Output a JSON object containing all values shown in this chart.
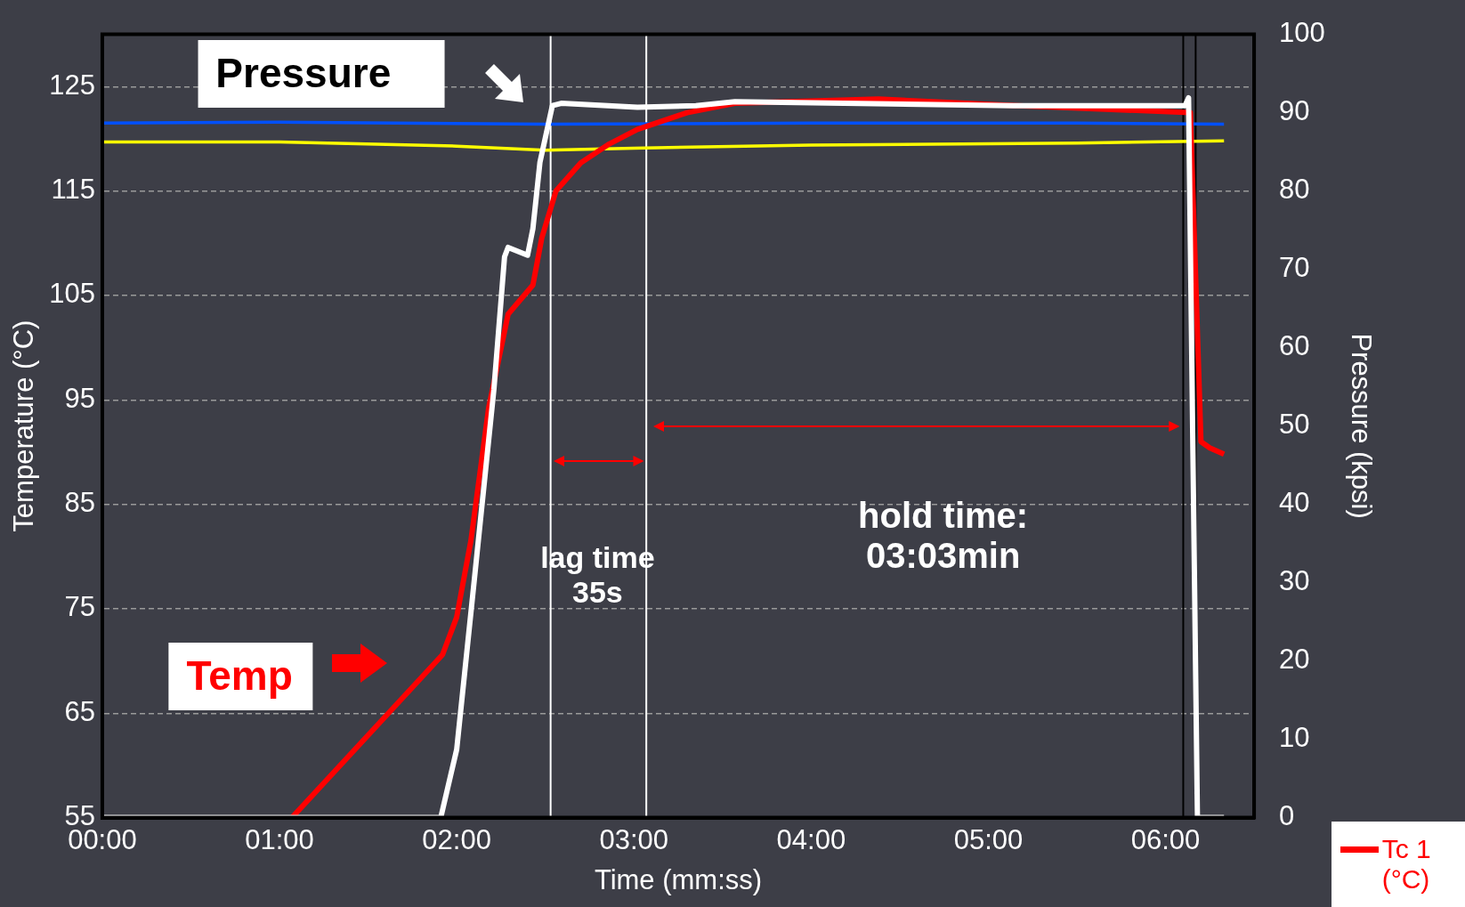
{
  "chart_data": {
    "type": "line",
    "xlabel": "Time (mm:ss)",
    "ylabel": "Temperature (°C)",
    "y2label": "Pressure (kpsi)",
    "xlim": [
      0,
      6.5
    ],
    "xticks": [
      {
        "value": 0,
        "label": "00:00"
      },
      {
        "value": 1,
        "label": "01:00"
      },
      {
        "value": 2,
        "label": "02:00"
      },
      {
        "value": 3,
        "label": "03:00"
      },
      {
        "value": 4,
        "label": "04:00"
      },
      {
        "value": 5,
        "label": "05:00"
      },
      {
        "value": 6,
        "label": "06:00"
      }
    ],
    "ylim": [
      55,
      130
    ],
    "yticks": [
      55,
      65,
      75,
      85,
      95,
      105,
      115,
      125
    ],
    "y2lim": [
      0,
      100
    ],
    "y2ticks": [
      0,
      10,
      20,
      30,
      40,
      50,
      60,
      70,
      80,
      90,
      100
    ],
    "grid": "y",
    "legend": "bottom right",
    "series": [
      {
        "name": "Tc 1 (°C)",
        "color": "#ff0000",
        "x": [
          1.07,
          1.92,
          2.0,
          2.08,
          2.18,
          2.29,
          2.43,
          2.48,
          2.56,
          2.7,
          2.86,
          3.02,
          3.3,
          3.57,
          4.38,
          5.14,
          6.14,
          6.2,
          6.25,
          6.33
        ],
        "values": [
          55,
          70.6,
          74.2,
          81.5,
          94.2,
          103.2,
          106,
          110.5,
          115,
          117.7,
          119.5,
          120.9,
          122.5,
          123.4,
          123.8,
          123.2,
          122.5,
          91,
          90.4,
          89.8
        ]
      },
      {
        "color": "#ffffff",
        "axis": "y2",
        "x": [
          0,
          1.91,
          2.0,
          2.1,
          2.21,
          2.27,
          2.29,
          2.4,
          2.43,
          2.47,
          2.54,
          2.59,
          3.02,
          3.35,
          3.57,
          5.14,
          6.11,
          6.13,
          6.18,
          6.33
        ],
        "values": [
          0,
          0,
          8.7,
          30.5,
          54.7,
          71.6,
          72.8,
          71.8,
          75.2,
          83.7,
          90.9,
          91.2,
          90.7,
          90.9,
          91.4,
          90.9,
          90.9,
          91.9,
          0,
          0
        ]
      },
      {
        "color": "#0050ff",
        "x": [
          0,
          1.0,
          2.5,
          4.0,
          5.5,
          6.33
        ],
        "values": [
          121.5,
          121.6,
          121.4,
          121.5,
          121.5,
          121.4
        ]
      },
      {
        "color": "#ffff00",
        "x": [
          0,
          1.0,
          2.0,
          2.5,
          3.0,
          4.0,
          5.5,
          6.33
        ],
        "values": [
          119.7,
          119.7,
          119.3,
          118.9,
          119.1,
          119.4,
          119.6,
          119.8
        ]
      }
    ],
    "ref_lines": [
      {
        "axis": "x",
        "value": 2.53,
        "color": "#ffffff"
      },
      {
        "axis": "x",
        "value": 3.07,
        "color": "#ffffff"
      },
      {
        "axis": "x",
        "value": 6.1,
        "color": "#000000"
      },
      {
        "axis": "x",
        "value": 6.17,
        "color": "#000000"
      }
    ],
    "annotations": [
      "Pressure",
      "Temp",
      "lag time\n35s",
      "hold time:\n03:03min"
    ]
  }
}
